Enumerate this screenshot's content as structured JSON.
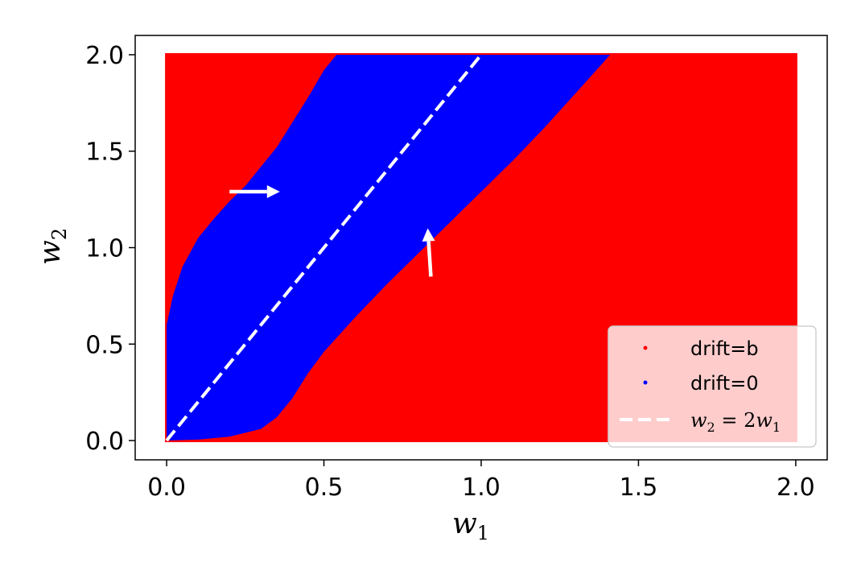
{
  "chart_data": {
    "type": "scatter",
    "title": "",
    "xlabel": "w",
    "xlabel_sub": "1",
    "ylabel": "w",
    "ylabel_sub": "2",
    "xlim": [
      -0.1,
      2.1
    ],
    "ylim": [
      -0.1,
      2.1
    ],
    "x_ticks": [
      0.0,
      0.5,
      1.0,
      1.5,
      2.0
    ],
    "x_tick_labels": [
      "0.0",
      "0.5",
      "1.0",
      "1.5",
      "2.0"
    ],
    "y_ticks": [
      0.0,
      0.5,
      1.0,
      1.5,
      2.0
    ],
    "y_tick_labels": [
      "0.0",
      "0.5",
      "1.0",
      "1.5",
      "2.0"
    ],
    "grid": false,
    "legend_position": "lower-right",
    "series": [
      {
        "name": "drift=b",
        "color": "#ff0000",
        "region": "background",
        "extent": {
          "x": [
            0.0,
            2.0
          ],
          "y": [
            0.0,
            2.0
          ]
        }
      },
      {
        "name": "drift=0",
        "color": "#0000ff",
        "region": "band",
        "boundary": [
          [
            0.0,
            0.0
          ],
          [
            0.0,
            0.6
          ],
          [
            0.02,
            0.75
          ],
          [
            0.05,
            0.9
          ],
          [
            0.1,
            1.05
          ],
          [
            0.15,
            1.15
          ],
          [
            0.2,
            1.24
          ],
          [
            0.25,
            1.32
          ],
          [
            0.3,
            1.42
          ],
          [
            0.35,
            1.52
          ],
          [
            0.4,
            1.65
          ],
          [
            0.45,
            1.78
          ],
          [
            0.5,
            1.92
          ],
          [
            0.54,
            2.0
          ],
          [
            1.41,
            2.0
          ],
          [
            1.3,
            1.8
          ],
          [
            1.2,
            1.62
          ],
          [
            1.1,
            1.45
          ],
          [
            1.0,
            1.29
          ],
          [
            0.9,
            1.13
          ],
          [
            0.8,
            0.97
          ],
          [
            0.7,
            0.81
          ],
          [
            0.6,
            0.64
          ],
          [
            0.5,
            0.46
          ],
          [
            0.45,
            0.35
          ],
          [
            0.4,
            0.22
          ],
          [
            0.35,
            0.12
          ],
          [
            0.3,
            0.06
          ],
          [
            0.2,
            0.02
          ],
          [
            0.1,
            0.005
          ],
          [
            0.0,
            0.0
          ]
        ]
      },
      {
        "name": "w_2 = 2w_1",
        "legend_math": {
          "a": "w",
          "a_sub": "2",
          "eq": " = 2",
          "b": "w",
          "b_sub": "1"
        },
        "color": "#ffffff",
        "style": "dashed",
        "x": [
          0.0,
          1.0
        ],
        "y": [
          0.0,
          2.0
        ]
      }
    ],
    "annotations": [
      {
        "type": "arrow",
        "from": [
          0.2,
          1.29
        ],
        "to": [
          0.36,
          1.29
        ],
        "color": "#ffffff"
      },
      {
        "type": "arrow",
        "from": [
          0.84,
          0.85
        ],
        "to": [
          0.83,
          1.1
        ],
        "color": "#ffffff"
      }
    ]
  }
}
